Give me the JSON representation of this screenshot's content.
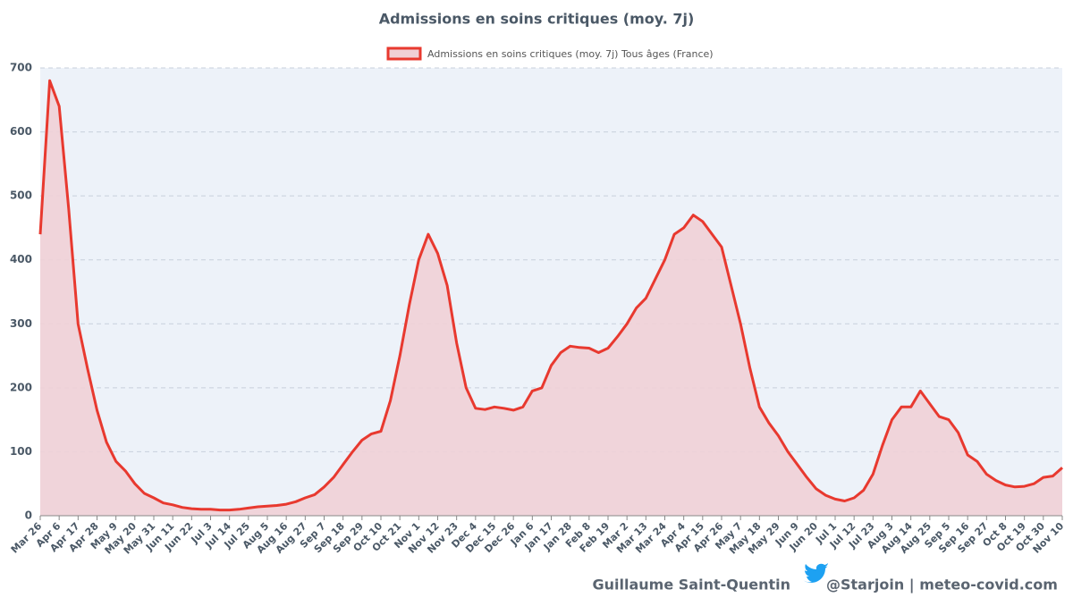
{
  "chart_data": {
    "type": "area",
    "title": "Admissions en soins critiques (moy. 7j)",
    "footer_author": "Guillaume Saint-Quentin",
    "footer_link": "@Starjoin | meteo-covid.com",
    "categories": [
      "Mar 26",
      null,
      "Apr 6",
      null,
      "Apr 17",
      null,
      "Apr 28",
      null,
      "May 9",
      null,
      "May 20",
      null,
      "May 31",
      null,
      "Jun 11",
      null,
      "Jun 22",
      null,
      "Jul 3",
      null,
      "Jul 14",
      null,
      "Jul 25",
      null,
      "Aug 5",
      null,
      "Aug 16",
      null,
      "Aug 27",
      null,
      "Sep 7",
      null,
      "Sep 18",
      null,
      "Sep 29",
      null,
      "Oct 10",
      null,
      "Oct 21",
      null,
      "Nov 1",
      null,
      "Nov 12",
      null,
      "Nov 23",
      null,
      "Dec 4",
      null,
      "Dec 15",
      null,
      "Dec 26",
      null,
      "Jan 6",
      null,
      "Jan 17",
      null,
      "Jan 28",
      null,
      "Feb 8",
      null,
      "Feb 19",
      null,
      "Mar 2",
      null,
      "Mar 13",
      null,
      "Mar 24",
      null,
      "Apr 4",
      null,
      "Apr 15",
      null,
      "Apr 26",
      null,
      "May 7",
      null,
      "May 18",
      null,
      "May 29",
      null,
      "Jun 9",
      null,
      "Jun 20",
      null,
      "Jul 1",
      null,
      "Jul 12",
      null,
      "Jul 23",
      null,
      "Aug 3",
      null,
      "Aug 14",
      null,
      "Aug 25",
      null,
      "Sep 5",
      null,
      "Sep 16",
      null,
      "Sep 27",
      null,
      "Oct 8",
      null,
      "Oct 19",
      null,
      "Oct 30",
      null,
      "Nov 10"
    ],
    "series": [
      {
        "name": "Admissions en soins critiques (moy. 7j) Tous âges (France)",
        "color": "#e8392f",
        "fill": "#f0d0d6",
        "values": [
          440,
          680,
          640,
          480,
          300,
          230,
          165,
          115,
          85,
          70,
          50,
          35,
          28,
          20,
          17,
          13,
          11,
          10,
          10,
          9,
          9,
          10,
          12,
          14,
          15,
          16,
          18,
          22,
          28,
          33,
          45,
          60,
          80,
          100,
          118,
          128,
          132,
          180,
          250,
          330,
          400,
          440,
          410,
          360,
          270,
          200,
          168,
          166,
          170,
          168,
          165,
          170,
          195,
          200,
          235,
          255,
          265,
          263,
          262,
          255,
          262,
          280,
          300,
          325,
          340,
          370,
          400,
          440,
          450,
          470,
          460,
          440,
          420,
          360,
          300,
          230,
          170,
          145,
          125,
          100,
          80,
          60,
          42,
          32,
          26,
          23,
          28,
          40,
          65,
          110,
          150,
          170,
          170,
          195,
          175,
          155,
          150,
          130,
          95,
          85,
          65,
          55,
          48,
          45,
          46,
          50,
          60,
          62,
          75
        ]
      }
    ],
    "ylim": [
      0,
      700
    ],
    "yticks": [
      0,
      100,
      200,
      300,
      400,
      500,
      600,
      700
    ],
    "grid": true
  }
}
